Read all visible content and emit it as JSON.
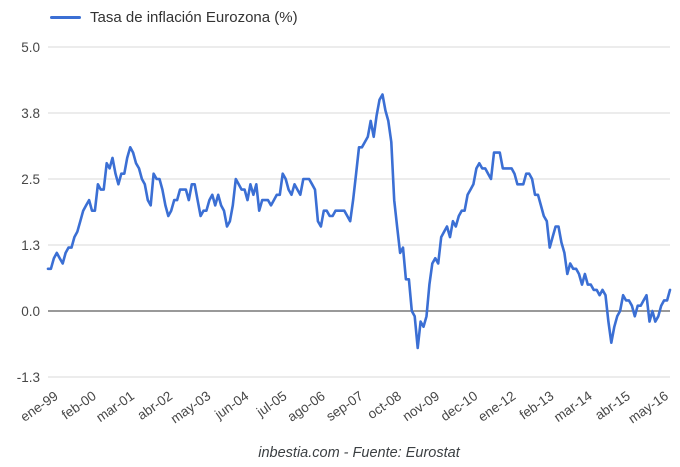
{
  "chart_data": {
    "type": "line",
    "legend": "Tasa de inflación Eurozona (%)",
    "footer": "inbestia.com - Fuente: Eurostat",
    "axis": {
      "y_min": -1.25,
      "y_max": 5.0,
      "y_tick_values": [
        5.0,
        3.75,
        2.5,
        1.25,
        0.0,
        -1.25
      ],
      "y_tick_labels": [
        "5.0",
        "3.8",
        "2.5",
        "1.3",
        "0.0",
        "-1.3"
      ],
      "grid": "horizontal-only",
      "x_tick_interval_months": 13,
      "x_tick_labels": [
        "ene-99",
        "feb-00",
        "mar-01",
        "abr-02",
        "may-03",
        "jun-04",
        "jul-05",
        "ago-06",
        "sep-07",
        "oct-08",
        "nov-09",
        "dec-10",
        "ene-12",
        "feb-13",
        "mar-14",
        "abr-15",
        "may-16"
      ]
    },
    "colors": {
      "line": "#3b6fd4",
      "gridline": "#d9d9d9",
      "zero_line": "#333333",
      "tick_label": "#474747",
      "legend_text": "#333333",
      "footer_text": "#3c4043"
    },
    "legend_position": "top-left",
    "series": [
      {
        "name": "Tasa de inflación Eurozona (%)",
        "color": "#3b6fd4",
        "first_point_label": "ene-99",
        "values": [
          0.8,
          0.8,
          1.0,
          1.1,
          1.0,
          0.9,
          1.1,
          1.2,
          1.2,
          1.4,
          1.5,
          1.7,
          1.9,
          2.0,
          2.1,
          1.9,
          1.9,
          2.4,
          2.3,
          2.3,
          2.8,
          2.7,
          2.9,
          2.6,
          2.4,
          2.6,
          2.6,
          2.9,
          3.1,
          3.0,
          2.8,
          2.7,
          2.5,
          2.4,
          2.1,
          2.0,
          2.6,
          2.5,
          2.5,
          2.3,
          2.0,
          1.8,
          1.9,
          2.1,
          2.1,
          2.3,
          2.3,
          2.3,
          2.1,
          2.4,
          2.4,
          2.1,
          1.8,
          1.9,
          1.9,
          2.1,
          2.2,
          2.0,
          2.2,
          2.0,
          1.9,
          1.6,
          1.7,
          2.0,
          2.5,
          2.4,
          2.3,
          2.3,
          2.1,
          2.4,
          2.2,
          2.4,
          1.9,
          2.1,
          2.1,
          2.1,
          2.0,
          2.1,
          2.2,
          2.2,
          2.6,
          2.5,
          2.3,
          2.2,
          2.4,
          2.3,
          2.2,
          2.5,
          2.5,
          2.5,
          2.4,
          2.3,
          1.7,
          1.6,
          1.9,
          1.9,
          1.8,
          1.8,
          1.9,
          1.9,
          1.9,
          1.9,
          1.8,
          1.7,
          2.1,
          2.6,
          3.1,
          3.1,
          3.2,
          3.3,
          3.6,
          3.3,
          3.7,
          4.0,
          4.1,
          3.8,
          3.6,
          3.2,
          2.1,
          1.6,
          1.1,
          1.2,
          0.6,
          0.6,
          0.0,
          -0.1,
          -0.7,
          -0.2,
          -0.3,
          -0.1,
          0.5,
          0.9,
          1.0,
          0.9,
          1.4,
          1.5,
          1.6,
          1.4,
          1.7,
          1.6,
          1.8,
          1.9,
          1.9,
          2.2,
          2.3,
          2.4,
          2.7,
          2.8,
          2.7,
          2.7,
          2.6,
          2.5,
          3.0,
          3.0,
          3.0,
          2.7,
          2.7,
          2.7,
          2.7,
          2.6,
          2.4,
          2.4,
          2.4,
          2.6,
          2.6,
          2.5,
          2.2,
          2.2,
          2.0,
          1.8,
          1.7,
          1.2,
          1.4,
          1.6,
          1.6,
          1.3,
          1.1,
          0.7,
          0.9,
          0.8,
          0.8,
          0.7,
          0.5,
          0.7,
          0.5,
          0.5,
          0.4,
          0.4,
          0.3,
          0.4,
          0.3,
          -0.2,
          -0.6,
          -0.3,
          -0.1,
          0.0,
          0.3,
          0.2,
          0.2,
          0.1,
          -0.1,
          0.1,
          0.1,
          0.2,
          0.3,
          -0.2,
          0.0,
          -0.2,
          -0.1,
          0.1,
          0.2,
          0.2,
          0.4
        ]
      }
    ]
  }
}
